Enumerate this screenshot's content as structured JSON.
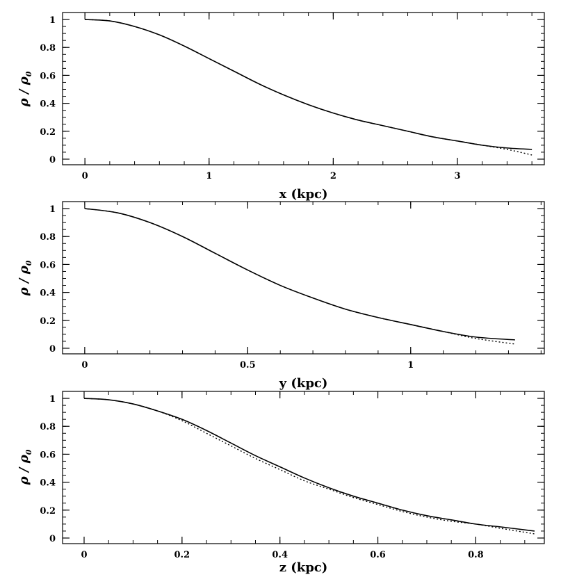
{
  "chart_data": [
    {
      "type": "line",
      "xlabel": "x (kpc)",
      "ylabel_main": "ρ / ρ",
      "ylabel_sub": "0",
      "xlim": [
        -0.18,
        3.7
      ],
      "ylim": [
        -0.04,
        1.05
      ],
      "xticks": [
        0,
        1,
        2,
        3
      ],
      "xtick_labels": [
        "0",
        "1",
        "2",
        "3"
      ],
      "xminor_step": 0.2,
      "yticks": [
        0,
        0.2,
        0.4,
        0.6,
        0.8,
        1
      ],
      "ytick_labels": [
        "0",
        "0.2",
        "0.4",
        "0.6",
        "0.8",
        "1"
      ],
      "yminor_step": 0.05,
      "series": [
        {
          "style": "solid",
          "x": [
            0,
            0.2,
            0.4,
            0.6,
            0.8,
            1.0,
            1.2,
            1.4,
            1.6,
            1.8,
            2.0,
            2.2,
            2.4,
            2.6,
            2.8,
            3.0,
            3.2,
            3.4,
            3.6
          ],
          "y": [
            1.0,
            0.99,
            0.95,
            0.89,
            0.81,
            0.72,
            0.63,
            0.54,
            0.46,
            0.39,
            0.33,
            0.28,
            0.24,
            0.2,
            0.16,
            0.13,
            0.1,
            0.08,
            0.07
          ]
        },
        {
          "style": "dotted",
          "x": [
            0,
            0.2,
            0.4,
            0.6,
            0.8,
            1.0,
            1.2,
            1.4,
            1.6,
            1.8,
            2.0,
            2.2,
            2.4,
            2.6,
            2.8,
            3.0,
            3.2,
            3.4,
            3.6
          ],
          "y": [
            1.0,
            0.99,
            0.95,
            0.89,
            0.81,
            0.72,
            0.63,
            0.54,
            0.46,
            0.39,
            0.33,
            0.28,
            0.24,
            0.2,
            0.16,
            0.13,
            0.1,
            0.07,
            0.03
          ]
        }
      ]
    },
    {
      "type": "line",
      "xlabel": "y (kpc)",
      "ylabel_main": "ρ / ρ",
      "ylabel_sub": "0",
      "xlim": [
        -0.068,
        1.41
      ],
      "ylim": [
        -0.04,
        1.05
      ],
      "xticks": [
        0,
        0.5,
        1
      ],
      "xtick_labels": [
        "0",
        "0.5",
        "1"
      ],
      "xminor_step": 0.1,
      "yticks": [
        0,
        0.2,
        0.4,
        0.6,
        0.8,
        1
      ],
      "ytick_labels": [
        "0",
        "0.2",
        "0.4",
        "0.6",
        "0.8",
        "1"
      ],
      "yminor_step": 0.05,
      "series": [
        {
          "style": "solid",
          "x": [
            0,
            0.1,
            0.2,
            0.3,
            0.4,
            0.5,
            0.6,
            0.7,
            0.8,
            0.9,
            1.0,
            1.1,
            1.2,
            1.32
          ],
          "y": [
            1.0,
            0.97,
            0.9,
            0.8,
            0.68,
            0.56,
            0.45,
            0.36,
            0.28,
            0.22,
            0.17,
            0.12,
            0.08,
            0.06
          ]
        },
        {
          "style": "dotted",
          "x": [
            0,
            0.1,
            0.2,
            0.3,
            0.4,
            0.5,
            0.6,
            0.7,
            0.8,
            0.9,
            1.0,
            1.1,
            1.2,
            1.32
          ],
          "y": [
            1.0,
            0.97,
            0.9,
            0.8,
            0.68,
            0.56,
            0.45,
            0.36,
            0.28,
            0.22,
            0.17,
            0.12,
            0.07,
            0.03
          ]
        }
      ]
    },
    {
      "type": "line",
      "xlabel": "z (kpc)",
      "ylabel_main": "ρ / ρ",
      "ylabel_sub": "0",
      "xlim": [
        -0.044,
        0.94
      ],
      "ylim": [
        -0.04,
        1.05
      ],
      "xticks": [
        0,
        0.2,
        0.4,
        0.6,
        0.8
      ],
      "xtick_labels": [
        "0",
        "0.2",
        "0.4",
        "0.6",
        "0.8"
      ],
      "xminor_step": 0.05,
      "yticks": [
        0,
        0.2,
        0.4,
        0.6,
        0.8,
        1
      ],
      "ytick_labels": [
        "0",
        "0.2",
        "0.4",
        "0.6",
        "0.8",
        "1"
      ],
      "yminor_step": 0.05,
      "series": [
        {
          "style": "solid",
          "x": [
            0,
            0.05,
            0.1,
            0.15,
            0.2,
            0.25,
            0.3,
            0.35,
            0.4,
            0.45,
            0.5,
            0.55,
            0.6,
            0.65,
            0.7,
            0.75,
            0.8,
            0.85,
            0.92
          ],
          "y": [
            1.0,
            0.99,
            0.96,
            0.91,
            0.85,
            0.77,
            0.68,
            0.59,
            0.51,
            0.43,
            0.36,
            0.3,
            0.25,
            0.2,
            0.16,
            0.13,
            0.1,
            0.08,
            0.05
          ]
        },
        {
          "style": "dotted",
          "x": [
            0,
            0.05,
            0.1,
            0.15,
            0.2,
            0.25,
            0.3,
            0.35,
            0.4,
            0.45,
            0.5,
            0.55,
            0.6,
            0.65,
            0.7,
            0.75,
            0.8,
            0.85,
            0.92
          ],
          "y": [
            1.0,
            0.99,
            0.96,
            0.91,
            0.84,
            0.75,
            0.66,
            0.57,
            0.49,
            0.41,
            0.35,
            0.29,
            0.24,
            0.19,
            0.15,
            0.12,
            0.1,
            0.07,
            0.03
          ]
        }
      ]
    }
  ]
}
